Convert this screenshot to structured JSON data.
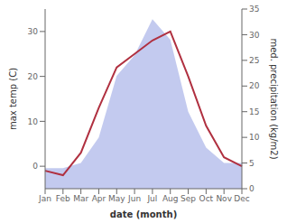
{
  "chart_data": {
    "type": "line",
    "xlabel": "date (month)",
    "ylabel": "max temp (C)",
    "y2label": "med. precipitation (kg/m2)",
    "categories": [
      "Jan",
      "Feb",
      "Mar",
      "Apr",
      "May",
      "Jun",
      "Jul",
      "Aug",
      "Sep",
      "Oct",
      "Nov",
      "Dec"
    ],
    "series": [
      {
        "type": "area",
        "axis": "y2",
        "color": "#aab4e8",
        "values": [
          4,
          4,
          5,
          10,
          22,
          26,
          33,
          29,
          15,
          8,
          5,
          5
        ]
      },
      {
        "type": "line",
        "color": "#b03040",
        "values": [
          -1,
          -2,
          3,
          13,
          22,
          25,
          28,
          30,
          20,
          9,
          2,
          0
        ]
      }
    ],
    "ylim": [
      -5,
      35
    ],
    "yticks": [
      0,
      10,
      20,
      30
    ],
    "y2lim": [
      0,
      35
    ],
    "y2ticks": [
      0,
      5,
      10,
      15,
      20,
      25,
      30,
      35
    ],
    "grid": false
  }
}
